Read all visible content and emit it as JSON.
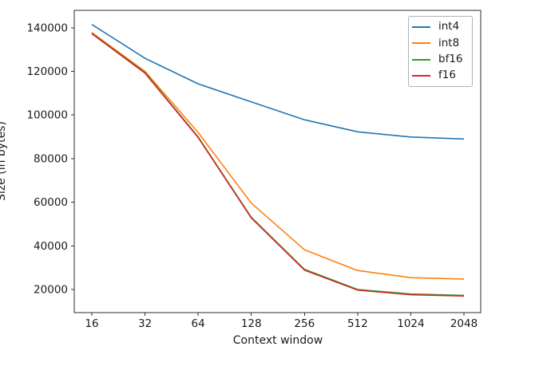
{
  "chart_data": {
    "type": "line",
    "title": "",
    "xlabel": "Context window",
    "ylabel": "Size (in bytes)",
    "x_categories": [
      "16",
      "32",
      "64",
      "128",
      "256",
      "512",
      "1024",
      "2048"
    ],
    "x_scale": "log2-categorical",
    "y_ticks": [
      20000,
      40000,
      60000,
      80000,
      100000,
      120000,
      140000
    ],
    "ylim": [
      9500,
      147300
    ],
    "grid": false,
    "legend_position": "upper right",
    "series": [
      {
        "name": "int4",
        "color": "#1f77b4",
        "values": [
          141500,
          126000,
          114300,
          106000,
          97800,
          92300,
          89900,
          89000
        ]
      },
      {
        "name": "int8",
        "color": "#ff7f0e",
        "values": [
          137800,
          120000,
          92000,
          59600,
          38200,
          28700,
          25400,
          24800
        ]
      },
      {
        "name": "bf16",
        "color": "#2ca02c",
        "values": [
          137500,
          119500,
          90000,
          53100,
          29200,
          20000,
          17900,
          17300
        ]
      },
      {
        "name": "f16",
        "color": "#d62728",
        "values": [
          137300,
          119200,
          89700,
          52800,
          28900,
          19700,
          17600,
          17000
        ]
      }
    ]
  }
}
